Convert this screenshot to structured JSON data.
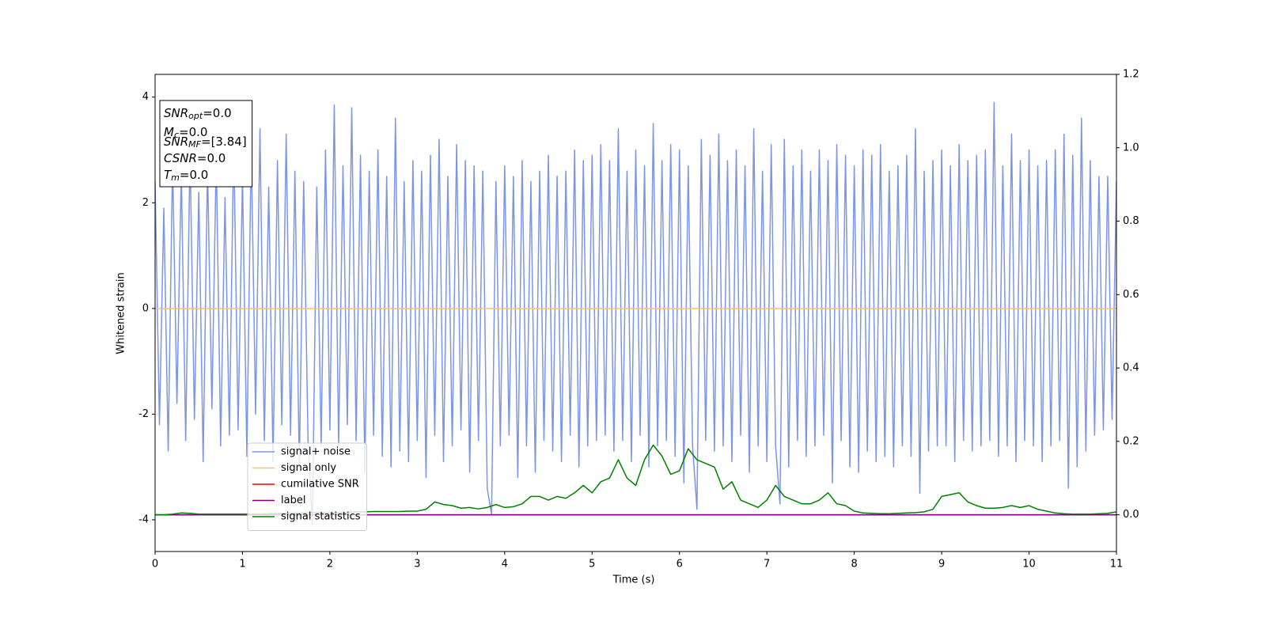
{
  "chart_data": {
    "type": "line",
    "xlabel": "Time (s)",
    "ylabel": "Whitened strain",
    "xlim": [
      0,
      11
    ],
    "xticks": [
      0,
      1,
      2,
      3,
      4,
      5,
      6,
      7,
      8,
      9,
      10,
      11
    ],
    "ylim": [
      -4.6,
      4.43
    ],
    "yticks": [
      -4,
      -2,
      0,
      2,
      4
    ],
    "y2lim": [
      -0.1,
      1.2
    ],
    "y2ticks": [
      {
        "value": 0,
        "label": "0.0"
      },
      {
        "value": 0.2,
        "label": "0.2"
      },
      {
        "value": 0.4,
        "label": "0.4"
      },
      {
        "value": 0.6,
        "label": "0.6"
      },
      {
        "value": 0.8,
        "label": "0.8"
      },
      {
        "value": 1,
        "label": "1.0"
      },
      {
        "value": 1.2,
        "label": "1.2"
      }
    ],
    "legend": "lower left",
    "annotation": [
      {
        "text": "SNR",
        "sub": "opt",
        "value": "=0.0"
      },
      {
        "text": "M",
        "sub": "c",
        "value": "=0.0"
      },
      {
        "text": "SNR",
        "sub": "MF",
        "value": "=[3.84]"
      },
      {
        "text": "CSNR",
        "value": "=0.0"
      },
      {
        "text": "T",
        "sub": "m",
        "value": "=0.0"
      }
    ],
    "series": [
      {
        "name": "signal+ noise",
        "color": "#7b95e8",
        "x": [
          0,
          0.05,
          0.1,
          0.15,
          0.2,
          0.25,
          0.3,
          0.35,
          0.4,
          0.45,
          0.5,
          0.55,
          0.6,
          0.65,
          0.7,
          0.75,
          0.8,
          0.85,
          0.9,
          0.95,
          1,
          1.05,
          1.1,
          1.15,
          1.2,
          1.25,
          1.3,
          1.35,
          1.4,
          1.45,
          1.5,
          1.55,
          1.6,
          1.65,
          1.7,
          1.75,
          1.8,
          1.85,
          1.9,
          1.95,
          2,
          2.05,
          2.1,
          2.15,
          2.2,
          2.25,
          2.3,
          2.35,
          2.4,
          2.45,
          2.5,
          2.55,
          2.6,
          2.65,
          2.7,
          2.75,
          2.8,
          2.85,
          2.9,
          2.95,
          3,
          3.05,
          3.1,
          3.15,
          3.2,
          3.25,
          3.3,
          3.35,
          3.4,
          3.45,
          3.5,
          3.55,
          3.6,
          3.65,
          3.7,
          3.75,
          3.8,
          3.85,
          3.9,
          3.95,
          4,
          4.05,
          4.1,
          4.15,
          4.2,
          4.25,
          4.3,
          4.35,
          4.4,
          4.45,
          4.5,
          4.55,
          4.6,
          4.65,
          4.7,
          4.75,
          4.8,
          4.85,
          4.9,
          4.95,
          5,
          5.05,
          5.1,
          5.15,
          5.2,
          5.25,
          5.3,
          5.35,
          5.4,
          5.45,
          5.5,
          5.55,
          5.6,
          5.65,
          5.7,
          5.75,
          5.8,
          5.85,
          5.9,
          5.95,
          6,
          6.05,
          6.1,
          6.15,
          6.2,
          6.25,
          6.3,
          6.35,
          6.4,
          6.45,
          6.5,
          6.55,
          6.6,
          6.65,
          6.7,
          6.75,
          6.8,
          6.85,
          6.9,
          6.95,
          7,
          7.05,
          7.1,
          7.15,
          7.2,
          7.25,
          7.3,
          7.35,
          7.4,
          7.45,
          7.5,
          7.55,
          7.6,
          7.65,
          7.7,
          7.75,
          7.8,
          7.85,
          7.9,
          7.95,
          8,
          8.05,
          8.1,
          8.15,
          8.2,
          8.25,
          8.3,
          8.35,
          8.4,
          8.45,
          8.5,
          8.55,
          8.6,
          8.65,
          8.7,
          8.75,
          8.8,
          8.85,
          8.9,
          8.95,
          9,
          9.05,
          9.1,
          9.15,
          9.2,
          9.25,
          9.3,
          9.35,
          9.4,
          9.45,
          9.5,
          9.55,
          9.6,
          9.65,
          9.7,
          9.75,
          9.8,
          9.85,
          9.9,
          9.95,
          10,
          10.05,
          10.1,
          10.15,
          10.2,
          10.25,
          10.3,
          10.35,
          10.4,
          10.45,
          10.5,
          10.55,
          10.6,
          10.65,
          10.7,
          10.75,
          10.8,
          10.85,
          10.9,
          10.95,
          11
        ],
        "values": [
          2.4,
          -2.2,
          1.9,
          -2.7,
          2.8,
          -1.8,
          2.6,
          -2.5,
          3.0,
          -2.1,
          2.2,
          -2.9,
          2.7,
          -1.9,
          2.9,
          -2.6,
          2.1,
          -2.4,
          3.2,
          -2.3,
          2.5,
          -2.8,
          3.1,
          -2.0,
          3.4,
          -2.5,
          2.3,
          -2.9,
          2.8,
          -2.2,
          3.3,
          -2.4,
          2.6,
          -3.0,
          2.4,
          -2.5,
          -4.1,
          2.3,
          -2.6,
          3.0,
          -2.3,
          3.85,
          -2.6,
          2.7,
          -2.2,
          3.8,
          -2.5,
          2.9,
          -3.1,
          2.6,
          -2.4,
          3.0,
          -2.8,
          2.5,
          -3.0,
          3.6,
          -2.7,
          2.4,
          -2.9,
          2.8,
          -2.5,
          2.6,
          -3.2,
          2.9,
          -2.4,
          3.2,
          -2.9,
          2.5,
          -2.6,
          3.1,
          -2.3,
          2.8,
          -3.1,
          2.7,
          -2.5,
          2.6,
          -3.4,
          -3.9,
          2.4,
          -2.6,
          2.7,
          -2.4,
          2.5,
          -3.2,
          2.8,
          -2.6,
          2.4,
          -3.1,
          2.6,
          -2.5,
          2.9,
          -2.7,
          2.5,
          -2.9,
          2.6,
          -2.4,
          3.0,
          -3.0,
          2.8,
          -2.6,
          2.9,
          -2.5,
          3.1,
          -2.4,
          2.8,
          -2.7,
          3.4,
          -2.5,
          2.6,
          -2.9,
          3.0,
          -2.4,
          2.7,
          -3.0,
          3.5,
          -2.6,
          2.8,
          -2.5,
          3.1,
          -2.8,
          3.0,
          -3.3,
          2.7,
          -2.6,
          -3.8,
          3.2,
          -2.5,
          2.9,
          -2.7,
          3.3,
          -2.6,
          2.8,
          -2.9,
          3.0,
          -2.4,
          2.7,
          -3.1,
          3.4,
          -2.6,
          2.6,
          -2.9,
          3.1,
          -2.6,
          -3.7,
          3.2,
          -3.0,
          2.7,
          -2.5,
          3.0,
          -2.8,
          2.6,
          -2.6,
          3.0,
          -2.4,
          2.8,
          -3.3,
          3.1,
          -2.5,
          2.9,
          -3.0,
          2.7,
          -3.1,
          3.0,
          -2.7,
          2.9,
          -2.9,
          3.1,
          -2.8,
          2.6,
          -3.0,
          2.7,
          -2.6,
          2.9,
          -2.8,
          3.4,
          -3.5,
          2.6,
          -2.7,
          2.8,
          -2.6,
          3.0,
          -2.6,
          2.7,
          -2.9,
          3.1,
          -2.5,
          2.8,
          -2.7,
          2.9,
          -2.6,
          3.0,
          -2.5,
          3.9,
          -2.8,
          2.7,
          -2.6,
          3.3,
          -2.9,
          2.8,
          -2.5,
          3.0,
          -2.6,
          2.7,
          -2.9,
          2.8,
          -2.6,
          3.0,
          -2.5,
          3.3,
          -3.4,
          2.9,
          -3.0,
          3.6,
          -2.7,
          2.8,
          -2.4,
          2.5,
          -2.3,
          2.5,
          -2.1,
          2.4
        ]
      },
      {
        "name": "signal only",
        "color": "#f7c46a",
        "x": [
          0,
          11
        ],
        "values": [
          0,
          0
        ]
      },
      {
        "name": "cumilative SNR",
        "color": "#ff0000",
        "axis": "y2",
        "x": [
          0,
          11
        ],
        "values": [
          0,
          0
        ]
      },
      {
        "name": "label",
        "color": "#800080",
        "axis": "y2",
        "x": [
          0,
          11
        ],
        "values": [
          0,
          0
        ]
      },
      {
        "name": "signal statistics",
        "color": "#008000",
        "axis": "y2",
        "x": [
          0,
          0.1,
          0.2,
          0.3,
          0.4,
          0.5,
          0.6,
          0.7,
          0.8,
          0.9,
          1,
          1.1,
          1.2,
          1.3,
          1.4,
          1.5,
          1.6,
          1.7,
          1.8,
          1.9,
          2,
          2.1,
          2.2,
          2.3,
          2.4,
          2.5,
          2.6,
          2.7,
          2.8,
          2.9,
          3,
          3.1,
          3.2,
          3.3,
          3.4,
          3.5,
          3.6,
          3.7,
          3.8,
          3.9,
          4,
          4.1,
          4.2,
          4.3,
          4.4,
          4.5,
          4.6,
          4.7,
          4.8,
          4.9,
          5,
          5.1,
          5.2,
          5.3,
          5.4,
          5.5,
          5.6,
          5.7,
          5.8,
          5.9,
          6,
          6.1,
          6.2,
          6.3,
          6.4,
          6.5,
          6.6,
          6.7,
          6.8,
          6.9,
          7,
          7.1,
          7.2,
          7.3,
          7.4,
          7.5,
          7.6,
          7.7,
          7.8,
          7.9,
          8,
          8.1,
          8.2,
          8.3,
          8.4,
          8.5,
          8.6,
          8.7,
          8.8,
          8.9,
          9,
          9.1,
          9.2,
          9.3,
          9.4,
          9.5,
          9.6,
          9.7,
          9.8,
          9.9,
          10,
          10.1,
          10.2,
          10.3,
          10.4,
          10.5,
          10.6,
          10.7,
          10.8,
          10.9,
          11
        ],
        "values": [
          0,
          0,
          0.002,
          0.005,
          0.004,
          0.002,
          0.002,
          0.002,
          0.002,
          0.002,
          0.002,
          0.002,
          0.002,
          0.003,
          0.004,
          0.004,
          0.005,
          0.005,
          0.006,
          0.006,
          0.006,
          0.006,
          0.007,
          0.008,
          0.008,
          0.009,
          0.009,
          0.009,
          0.009,
          0.01,
          0.01,
          0.015,
          0.035,
          0.028,
          0.025,
          0.018,
          0.02,
          0.016,
          0.02,
          0.028,
          0.02,
          0.022,
          0.03,
          0.05,
          0.05,
          0.04,
          0.05,
          0.045,
          0.06,
          0.08,
          0.06,
          0.09,
          0.1,
          0.15,
          0.1,
          0.08,
          0.15,
          0.19,
          0.16,
          0.11,
          0.12,
          0.18,
          0.15,
          0.14,
          0.13,
          0.07,
          0.09,
          0.04,
          0.03,
          0.02,
          0.04,
          0.08,
          0.05,
          0.04,
          0.03,
          0.03,
          0.04,
          0.06,
          0.03,
          0.025,
          0.01,
          0.005,
          0.004,
          0.003,
          0.003,
          0.004,
          0.005,
          0.006,
          0.008,
          0.015,
          0.05,
          0.055,
          0.06,
          0.035,
          0.025,
          0.018,
          0.018,
          0.02,
          0.025,
          0.02,
          0.025,
          0.015,
          0.01,
          0.005,
          0.003,
          0.002,
          0.002,
          0.002,
          0.003,
          0.004,
          0.008
        ]
      }
    ]
  }
}
